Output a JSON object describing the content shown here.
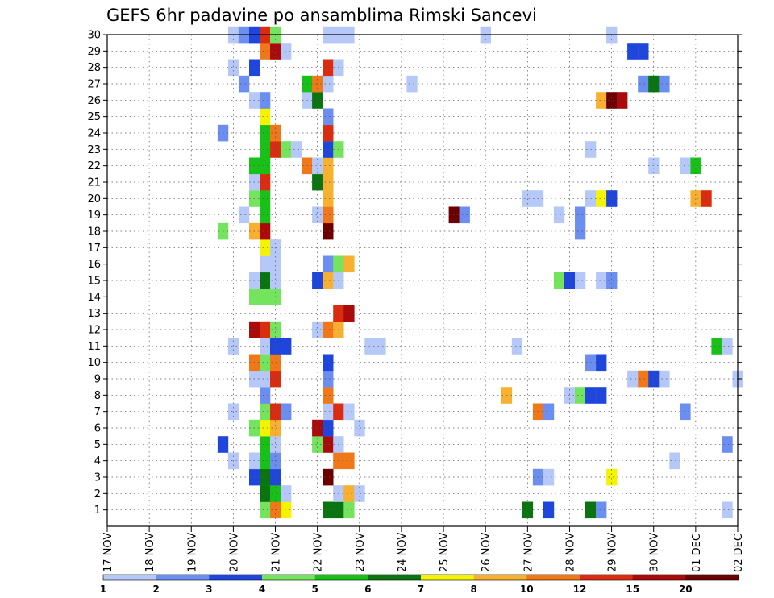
{
  "chart_data": {
    "type": "heatmap",
    "title": "GEFS 6hr padavine po ansamblima Rimski Sancevi",
    "x_tick_labels": [
      "17 NOV",
      "18 NOV",
      "19 NOV",
      "20 NOV",
      "21 NOV",
      "22 NOV",
      "23 NOV",
      "24 NOV",
      "25 NOV",
      "26 NOV",
      "27 NOV",
      "28 NOV",
      "29 NOV",
      "30 NOV",
      "01 DEC",
      "02 DEC"
    ],
    "x_range_days": [
      0,
      15
    ],
    "x_step_days": 0.25,
    "y_tick_labels": [
      "1",
      "2",
      "3",
      "4",
      "5",
      "6",
      "7",
      "8",
      "9",
      "10",
      "11",
      "12",
      "13",
      "14",
      "15",
      "16",
      "17",
      "18",
      "19",
      "20",
      "21",
      "22",
      "23",
      "24",
      "25",
      "26",
      "27",
      "28",
      "29",
      "30"
    ],
    "y_range": [
      0,
      30
    ],
    "grid": true,
    "legend_position": "bottom",
    "colorbar": {
      "labels": [
        "1",
        "2",
        "3",
        "4",
        "5",
        "6",
        "7",
        "8",
        "10",
        "12",
        "15",
        "20"
      ],
      "colors": [
        "#b6c8f8",
        "#6b8ef0",
        "#1e46dc",
        "#74e45e",
        "#18c018",
        "#0a7410",
        "#f4f400",
        "#f8b030",
        "#f07818",
        "#dc2c10",
        "#aa0a0a",
        "#6c0000"
      ]
    },
    "cells": [
      [
        3.75,
        1,
        4
      ],
      [
        4.0,
        1,
        9
      ],
      [
        4.25,
        1,
        7
      ],
      [
        5.25,
        1,
        6
      ],
      [
        5.5,
        1,
        6
      ],
      [
        5.75,
        1,
        4
      ],
      [
        10.0,
        1,
        6
      ],
      [
        10.5,
        1,
        3
      ],
      [
        11.5,
        1,
        6
      ],
      [
        11.75,
        1,
        2
      ],
      [
        14.75,
        1,
        1
      ],
      [
        3.75,
        2,
        6
      ],
      [
        4.0,
        2,
        5
      ],
      [
        4.25,
        2,
        1
      ],
      [
        5.5,
        2,
        1
      ],
      [
        5.75,
        2,
        8
      ],
      [
        6.0,
        2,
        1
      ],
      [
        3.5,
        3,
        3
      ],
      [
        3.75,
        3,
        6
      ],
      [
        4.0,
        3,
        3
      ],
      [
        5.25,
        3,
        12
      ],
      [
        10.25,
        3,
        2
      ],
      [
        10.5,
        3,
        1
      ],
      [
        12.0,
        3,
        7
      ],
      [
        3.0,
        4,
        1
      ],
      [
        3.5,
        4,
        1
      ],
      [
        3.75,
        4,
        5
      ],
      [
        4.0,
        4,
        2
      ],
      [
        5.5,
        4,
        9
      ],
      [
        5.75,
        4,
        9
      ],
      [
        13.5,
        4,
        1
      ],
      [
        2.75,
        5,
        3
      ],
      [
        3.75,
        5,
        5
      ],
      [
        4.0,
        5,
        1
      ],
      [
        5.0,
        5,
        4
      ],
      [
        5.25,
        5,
        11
      ],
      [
        5.5,
        5,
        1
      ],
      [
        14.75,
        5,
        2
      ],
      [
        3.5,
        6,
        4
      ],
      [
        3.75,
        6,
        7
      ],
      [
        4.0,
        6,
        8
      ],
      [
        5.0,
        6,
        11
      ],
      [
        5.25,
        6,
        3
      ],
      [
        6.0,
        6,
        1
      ],
      [
        3.0,
        7,
        1
      ],
      [
        3.75,
        7,
        4
      ],
      [
        4.0,
        7,
        10
      ],
      [
        4.25,
        7,
        2
      ],
      [
        5.25,
        7,
        1
      ],
      [
        5.5,
        7,
        10
      ],
      [
        5.75,
        7,
        1
      ],
      [
        10.25,
        7,
        9
      ],
      [
        10.5,
        7,
        2
      ],
      [
        13.75,
        7,
        2
      ],
      [
        3.75,
        8,
        2
      ],
      [
        5.25,
        8,
        9
      ],
      [
        9.5,
        8,
        8
      ],
      [
        11.0,
        8,
        1
      ],
      [
        11.25,
        8,
        4
      ],
      [
        11.5,
        8,
        3
      ],
      [
        11.75,
        8,
        3
      ],
      [
        3.5,
        9,
        1
      ],
      [
        3.75,
        9,
        1
      ],
      [
        4.0,
        9,
        10
      ],
      [
        5.25,
        9,
        2
      ],
      [
        12.5,
        9,
        1
      ],
      [
        12.75,
        9,
        9
      ],
      [
        13.0,
        9,
        3
      ],
      [
        13.25,
        9,
        1
      ],
      [
        15.0,
        9,
        1
      ],
      [
        3.5,
        10,
        9
      ],
      [
        3.75,
        10,
        4
      ],
      [
        4.0,
        10,
        9
      ],
      [
        5.25,
        10,
        3
      ],
      [
        11.5,
        10,
        2
      ],
      [
        11.75,
        10,
        3
      ],
      [
        3.0,
        11,
        1
      ],
      [
        3.75,
        11,
        1
      ],
      [
        4.0,
        11,
        3
      ],
      [
        4.25,
        11,
        3
      ],
      [
        6.25,
        11,
        1
      ],
      [
        6.5,
        11,
        1
      ],
      [
        9.75,
        11,
        1
      ],
      [
        14.5,
        11,
        5
      ],
      [
        14.75,
        11,
        1
      ],
      [
        3.5,
        12,
        11
      ],
      [
        3.75,
        12,
        10
      ],
      [
        4.0,
        12,
        4
      ],
      [
        5.0,
        12,
        1
      ],
      [
        5.25,
        12,
        9
      ],
      [
        5.5,
        12,
        8
      ],
      [
        5.5,
        13,
        10
      ],
      [
        5.75,
        13,
        11
      ],
      [
        3.5,
        14,
        4
      ],
      [
        3.75,
        14,
        4
      ],
      [
        4.0,
        14,
        4
      ],
      [
        3.5,
        15,
        1
      ],
      [
        3.75,
        15,
        6
      ],
      [
        4.0,
        15,
        1
      ],
      [
        5.0,
        15,
        3
      ],
      [
        5.25,
        15,
        8
      ],
      [
        5.5,
        15,
        1
      ],
      [
        10.75,
        15,
        4
      ],
      [
        11.0,
        15,
        3
      ],
      [
        11.25,
        15,
        1
      ],
      [
        11.75,
        15,
        1
      ],
      [
        12.0,
        15,
        2
      ],
      [
        3.75,
        16,
        1
      ],
      [
        4.0,
        16,
        1
      ],
      [
        5.25,
        16,
        2
      ],
      [
        5.5,
        16,
        4
      ],
      [
        5.75,
        16,
        8
      ],
      [
        3.75,
        17,
        7
      ],
      [
        4.0,
        17,
        1
      ],
      [
        2.75,
        18,
        4
      ],
      [
        3.5,
        18,
        8
      ],
      [
        3.75,
        18,
        11
      ],
      [
        5.25,
        18,
        12
      ],
      [
        11.25,
        18,
        2
      ],
      [
        3.25,
        19,
        1
      ],
      [
        3.75,
        19,
        5
      ],
      [
        5.0,
        19,
        1
      ],
      [
        5.25,
        19,
        9
      ],
      [
        8.25,
        19,
        12
      ],
      [
        8.5,
        19,
        2
      ],
      [
        10.75,
        19,
        1
      ],
      [
        11.25,
        19,
        2
      ],
      [
        3.5,
        20,
        4
      ],
      [
        3.75,
        20,
        5
      ],
      [
        5.25,
        20,
        8
      ],
      [
        10.0,
        20,
        1
      ],
      [
        10.25,
        20,
        1
      ],
      [
        11.5,
        20,
        1
      ],
      [
        11.75,
        20,
        7
      ],
      [
        12.0,
        20,
        3
      ],
      [
        14.0,
        20,
        8
      ],
      [
        14.25,
        20,
        10
      ],
      [
        3.5,
        21,
        1
      ],
      [
        3.75,
        21,
        10
      ],
      [
        5.0,
        21,
        6
      ],
      [
        5.25,
        21,
        8
      ],
      [
        3.5,
        22,
        5
      ],
      [
        3.75,
        22,
        5
      ],
      [
        4.75,
        22,
        9
      ],
      [
        5.0,
        22,
        1
      ],
      [
        5.25,
        22,
        8
      ],
      [
        13.0,
        22,
        1
      ],
      [
        13.75,
        22,
        1
      ],
      [
        14.0,
        22,
        5
      ],
      [
        3.75,
        23,
        5
      ],
      [
        4.0,
        23,
        10
      ],
      [
        4.25,
        23,
        4
      ],
      [
        4.5,
        23,
        1
      ],
      [
        5.25,
        23,
        3
      ],
      [
        5.5,
        23,
        4
      ],
      [
        11.5,
        23,
        1
      ],
      [
        2.75,
        24,
        2
      ],
      [
        3.75,
        24,
        5
      ],
      [
        4.0,
        24,
        9
      ],
      [
        5.25,
        24,
        10
      ],
      [
        3.75,
        25,
        7
      ],
      [
        5.25,
        25,
        2
      ],
      [
        3.5,
        26,
        1
      ],
      [
        3.75,
        26,
        2
      ],
      [
        4.75,
        26,
        1
      ],
      [
        5.0,
        26,
        6
      ],
      [
        11.75,
        26,
        8
      ],
      [
        12.0,
        26,
        12
      ],
      [
        12.25,
        26,
        11
      ],
      [
        3.25,
        27,
        2
      ],
      [
        4.75,
        27,
        5
      ],
      [
        5.0,
        27,
        9
      ],
      [
        5.25,
        27,
        1
      ],
      [
        7.25,
        27,
        1
      ],
      [
        12.75,
        27,
        2
      ],
      [
        13.0,
        27,
        6
      ],
      [
        13.25,
        27,
        2
      ],
      [
        3.0,
        28,
        1
      ],
      [
        3.5,
        28,
        3
      ],
      [
        5.25,
        28,
        10
      ],
      [
        5.5,
        28,
        1
      ],
      [
        3.75,
        29,
        9
      ],
      [
        4.0,
        29,
        11
      ],
      [
        4.25,
        29,
        1
      ],
      [
        12.5,
        29,
        3
      ],
      [
        12.75,
        29,
        3
      ],
      [
        3.0,
        30,
        1
      ],
      [
        3.25,
        30,
        2
      ],
      [
        3.5,
        30,
        3
      ],
      [
        3.75,
        30,
        10
      ],
      [
        4.0,
        30,
        4
      ],
      [
        5.25,
        30,
        1
      ],
      [
        5.5,
        30,
        1
      ],
      [
        5.75,
        30,
        1
      ],
      [
        9.0,
        30,
        1
      ],
      [
        12.0,
        30,
        1
      ]
    ]
  }
}
